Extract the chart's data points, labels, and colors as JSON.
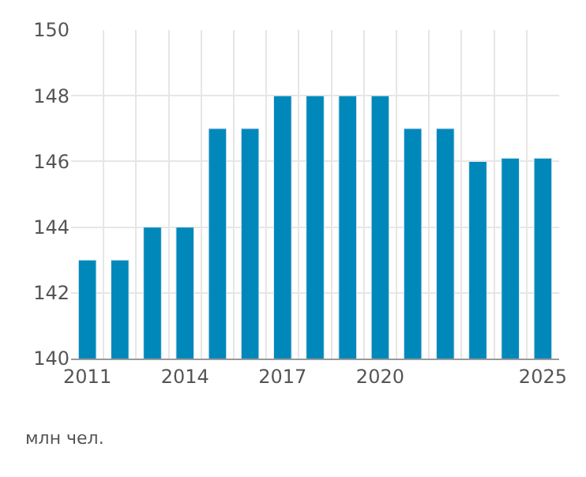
{
  "chart_data": {
    "type": "bar",
    "categories": [
      "2011",
      null,
      null,
      "2014",
      null,
      null,
      "2017",
      null,
      null,
      "2020",
      null,
      null,
      null,
      null,
      "2025"
    ],
    "values": [
      143,
      143,
      144,
      144,
      147,
      147,
      148,
      148,
      148,
      148,
      147,
      147,
      146,
      146.1,
      146.1
    ],
    "color": "#0088bb",
    "ylim": [
      140,
      150
    ],
    "yticks": [
      140,
      142,
      144,
      146,
      148,
      150
    ],
    "grid": true,
    "annotations": [
      "млн чел."
    ]
  }
}
